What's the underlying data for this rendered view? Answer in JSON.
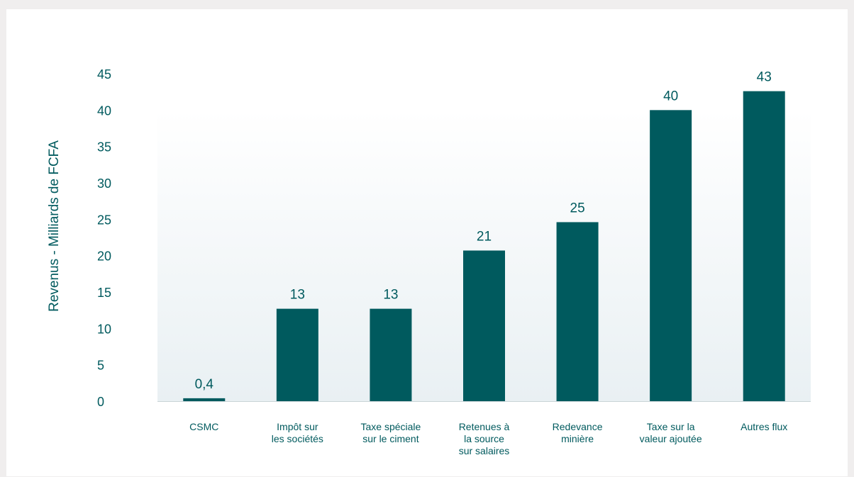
{
  "chart_data": {
    "type": "bar",
    "ylabel": "Revenus - Milliards de FCFA",
    "ylim": [
      0,
      45
    ],
    "yticks": [
      "0",
      "5",
      "10",
      "15",
      "20",
      "25",
      "30",
      "35",
      "40",
      "45"
    ],
    "categories": [
      [
        "CSMC"
      ],
      [
        "Impôt sur",
        "les sociétés"
      ],
      [
        "Taxe spéciale",
        "sur le ciment"
      ],
      [
        "Retenues à",
        "la source",
        "sur salaires"
      ],
      [
        "Redevance",
        "minière"
      ],
      [
        "Taxe sur la",
        "valeur ajoutée"
      ],
      [
        "Autres flux"
      ]
    ],
    "values": [
      0.4,
      12.7,
      12.7,
      20.7,
      24.6,
      40.0,
      42.6
    ],
    "value_labels": [
      "0,4",
      "13",
      "13",
      "21",
      "25",
      "40",
      "43"
    ],
    "colors": {
      "bar": "#005a5e",
      "text": "#005a5e",
      "axis": "#c9d3d6"
    },
    "grid": false,
    "legend": "none"
  }
}
